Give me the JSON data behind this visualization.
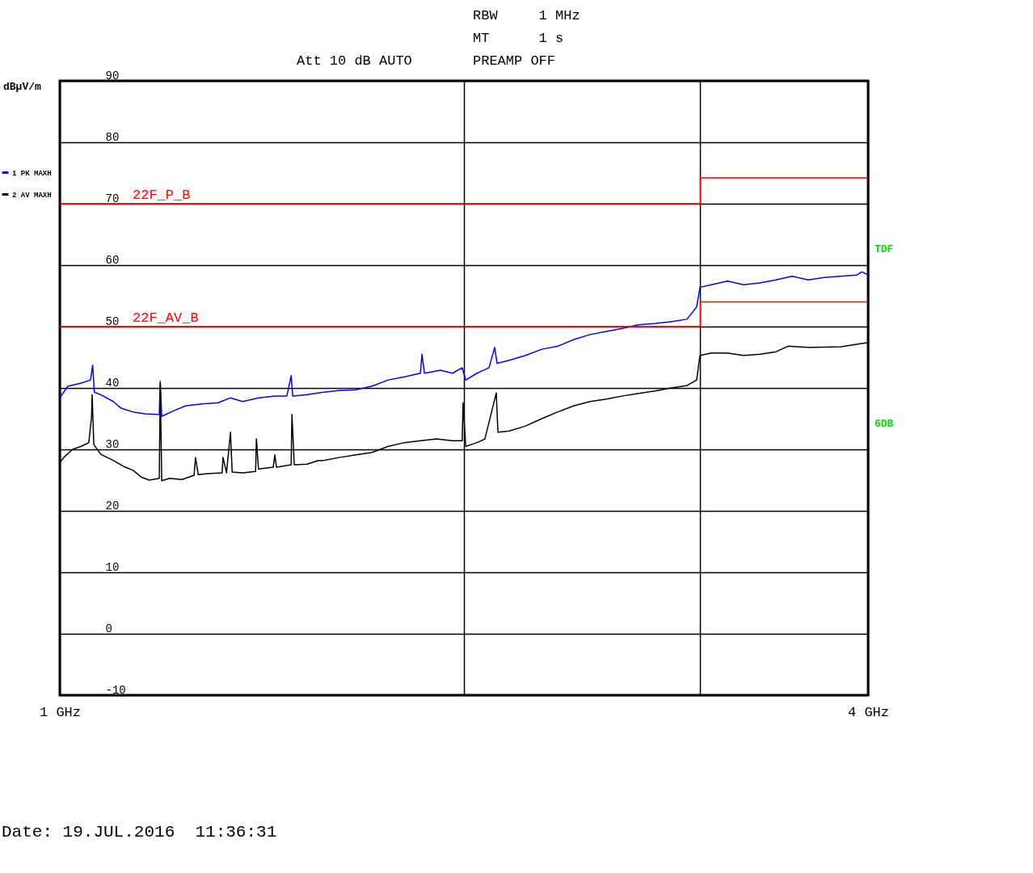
{
  "chart_data": {
    "type": "line",
    "ylabel": "dBµV/m",
    "log": "x",
    "grid": true,
    "legend": "left",
    "xlim": [
      1,
      4
    ],
    "xticks": [
      {
        "value": 1,
        "label": "1 GHz"
      },
      {
        "value": 2,
        "label": null
      },
      {
        "value": 3,
        "label": null
      },
      {
        "value": 4,
        "label": "4 GHz"
      }
    ],
    "ylim": [
      -10,
      90
    ],
    "yticks": [
      90,
      80,
      70,
      60,
      50,
      40,
      30,
      20,
      10,
      0,
      -10
    ],
    "annotations": [
      "RBW     1 MHz",
      "MT      1 s",
      "Att 10 dB AUTO",
      "PREAMP OFF",
      "TDF",
      "6DB",
      "Date: 19.JUL.2016  11:36:31"
    ],
    "series": [
      {
        "name": "1 PK MAXH",
        "type": "line",
        "color": "#0000ff",
        "x": [
          1.0,
          1.014,
          1.037,
          1.054,
          1.058,
          1.061,
          1.073,
          1.096,
          1.111,
          1.134,
          1.158,
          1.186,
          1.188,
          1.191,
          1.216,
          1.241,
          1.276,
          1.312,
          1.34,
          1.368,
          1.406,
          1.446,
          1.476,
          1.487,
          1.491,
          1.528,
          1.571,
          1.616,
          1.661,
          1.708,
          1.756,
          1.805,
          1.856,
          1.861,
          1.869,
          1.921,
          1.961,
          1.994,
          2.006,
          2.045,
          2.088,
          2.108,
          2.117,
          2.161,
          2.222,
          2.285,
          2.349,
          2.415,
          2.483,
          2.553,
          2.625,
          2.698,
          2.774,
          2.852,
          2.932,
          2.981,
          2.998,
          3.057,
          3.143,
          3.231,
          3.322,
          3.415,
          3.511,
          3.61,
          3.711,
          3.816,
          3.923,
          3.956,
          4.0
        ],
        "values": [
          38.4,
          40.3,
          40.8,
          41.3,
          43.7,
          39.3,
          38.9,
          37.8,
          36.7,
          36.1,
          35.8,
          35.7,
          41.1,
          35.4,
          36.3,
          37.1,
          37.4,
          37.6,
          38.4,
          37.8,
          38.4,
          38.7,
          38.7,
          42.0,
          38.7,
          38.9,
          39.3,
          39.6,
          39.7,
          40.3,
          41.3,
          41.8,
          42.4,
          45.5,
          42.4,
          42.9,
          42.4,
          43.3,
          41.3,
          42.4,
          43.3,
          46.6,
          44.0,
          44.5,
          45.3,
          46.3,
          46.8,
          47.9,
          48.7,
          49.2,
          49.7,
          50.3,
          50.5,
          50.8,
          51.2,
          53.2,
          56.4,
          56.8,
          57.4,
          56.8,
          57.1,
          57.6,
          58.2,
          57.6,
          58.0,
          58.2,
          58.4,
          58.9,
          58.4
        ]
      },
      {
        "name": "2 AV MAXH",
        "type": "line",
        "color": "#000000",
        "x": [
          1.0,
          1.008,
          1.022,
          1.037,
          1.051,
          1.056,
          1.057,
          1.06,
          1.073,
          1.096,
          1.119,
          1.134,
          1.15,
          1.166,
          1.186,
          1.188,
          1.191,
          1.207,
          1.233,
          1.259,
          1.262,
          1.268,
          1.294,
          1.321,
          1.323,
          1.331,
          1.34,
          1.344,
          1.368,
          1.399,
          1.401,
          1.406,
          1.442,
          1.446,
          1.45,
          1.487,
          1.489,
          1.495,
          1.528,
          1.558,
          1.571,
          1.616,
          1.661,
          1.708,
          1.756,
          1.805,
          1.856,
          1.908,
          1.961,
          1.994,
          1.997,
          2.006,
          2.045,
          2.073,
          2.114,
          2.12,
          2.161,
          2.222,
          2.285,
          2.349,
          2.415,
          2.483,
          2.553,
          2.625,
          2.698,
          2.774,
          2.852,
          2.932,
          2.981,
          2.998,
          3.057,
          3.143,
          3.231,
          3.322,
          3.415,
          3.487,
          3.61,
          3.816,
          4.0
        ],
        "values": [
          27.9,
          28.8,
          30.0,
          30.5,
          31.1,
          35.4,
          38.9,
          30.8,
          29.2,
          28.2,
          27.1,
          26.6,
          25.5,
          25.0,
          25.3,
          40.8,
          24.9,
          25.3,
          25.1,
          25.8,
          28.7,
          25.9,
          26.1,
          26.2,
          28.7,
          26.2,
          32.8,
          26.3,
          26.2,
          26.4,
          31.7,
          26.8,
          27.1,
          29.1,
          27.1,
          27.5,
          35.7,
          27.5,
          27.6,
          28.2,
          28.2,
          28.7,
          29.1,
          29.5,
          30.5,
          31.1,
          31.4,
          31.7,
          31.4,
          31.4,
          37.6,
          30.5,
          31.1,
          31.7,
          39.2,
          32.8,
          33.0,
          33.8,
          35.0,
          36.1,
          37.1,
          37.8,
          38.2,
          38.7,
          39.1,
          39.5,
          40.0,
          40.4,
          41.3,
          45.3,
          45.7,
          45.7,
          45.3,
          45.5,
          45.9,
          46.8,
          46.6,
          46.7,
          47.4
        ]
      },
      {
        "name": "22F_P_B",
        "type": "step",
        "color": "#ff0000",
        "x": [
          1,
          3,
          4
        ],
        "values": [
          70,
          74.2,
          74.2
        ]
      },
      {
        "name": "22F_AV_B",
        "type": "step",
        "color": "#ff0000",
        "x": [
          1,
          3,
          4
        ],
        "values": [
          50,
          54,
          54
        ]
      }
    ]
  }
}
